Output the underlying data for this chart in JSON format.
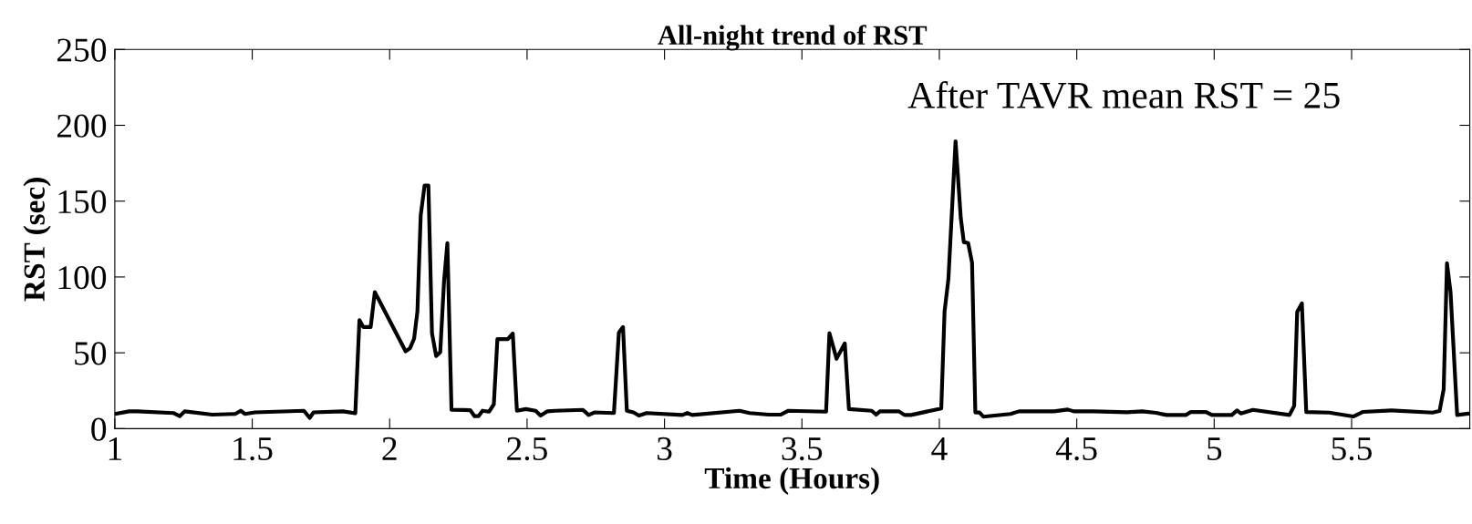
{
  "chart_data": {
    "type": "line",
    "title": "All-night trend of RST",
    "xlabel": "Time (Hours)",
    "ylabel": "RST (sec)",
    "annotations": [
      "After TAVR mean RST = 25"
    ],
    "xlim": [
      1,
      5.93
    ],
    "xticks": [
      1,
      1.5,
      2,
      2.5,
      3,
      3.5,
      4,
      4.5,
      5,
      5.5
    ],
    "ylim": [
      0,
      250
    ],
    "yticks": [
      0,
      50,
      100,
      150,
      200,
      250
    ],
    "grid": false,
    "marker": "none",
    "line_style": "solid",
    "x": [
      1.0,
      1.052,
      1.082,
      1.213,
      1.236,
      1.254,
      1.355,
      1.438,
      1.458,
      1.474,
      1.51,
      1.688,
      1.709,
      1.723,
      1.83,
      1.875,
      1.89,
      1.904,
      1.931,
      1.946,
      2.058,
      2.074,
      2.089,
      2.101,
      2.113,
      2.127,
      2.141,
      2.154,
      2.169,
      2.184,
      2.198,
      2.21,
      2.225,
      2.293,
      2.309,
      2.323,
      2.338,
      2.362,
      2.379,
      2.392,
      2.43,
      2.448,
      2.463,
      2.495,
      2.531,
      2.549,
      2.573,
      2.603,
      2.703,
      2.724,
      2.745,
      2.816,
      2.834,
      2.849,
      2.863,
      2.887,
      2.907,
      2.935,
      3.065,
      3.083,
      3.101,
      3.273,
      3.309,
      3.38,
      3.422,
      3.451,
      3.588,
      3.6,
      3.626,
      3.656,
      3.671,
      3.754,
      3.77,
      3.784,
      3.853,
      3.873,
      3.897,
      4.007,
      4.019,
      4.033,
      4.059,
      4.078,
      4.089,
      4.105,
      4.119,
      4.131,
      4.146,
      4.16,
      4.259,
      4.29,
      4.417,
      4.467,
      4.489,
      4.561,
      4.683,
      4.738,
      4.788,
      4.826,
      4.898,
      4.915,
      4.97,
      4.992,
      5.064,
      5.083,
      5.097,
      5.141,
      5.274,
      5.291,
      5.302,
      5.319,
      5.335,
      5.418,
      5.506,
      5.54,
      5.645,
      5.794,
      5.82,
      5.835,
      5.847,
      5.86,
      5.884,
      5.93
    ],
    "series": [
      {
        "color": "#000000",
        "values": [
          9.7,
          11.4,
          11.4,
          10.3,
          8.2,
          11.4,
          9.2,
          9.7,
          11.8,
          9.7,
          10.7,
          11.8,
          7.1,
          10.7,
          11.4,
          10.1,
          71.5,
          67,
          67,
          90,
          51,
          53,
          59.4,
          77.3,
          140.6,
          160.3,
          160.3,
          62.9,
          47.9,
          50.4,
          97.6,
          122.3,
          12.4,
          12.2,
          8.2,
          8.2,
          11.8,
          11.2,
          16.1,
          59,
          59,
          62.7,
          11.8,
          12.9,
          11.8,
          8.6,
          11.4,
          11.8,
          12.4,
          9,
          10.7,
          10.3,
          63.3,
          67,
          11.8,
          10.7,
          8.6,
          10.3,
          9,
          10.3,
          9,
          11.8,
          10.3,
          9.2,
          9.2,
          11.8,
          11.2,
          62.9,
          46.1,
          56.2,
          12.9,
          11.8,
          9.2,
          11.4,
          11.4,
          9,
          9,
          13.3,
          77.3,
          98.7,
          189.5,
          138.8,
          123,
          122.3,
          109.4,
          10.7,
          10.7,
          7.9,
          9.7,
          11.4,
          11.4,
          12.6,
          11.4,
          11.4,
          10.8,
          11.4,
          10.4,
          9,
          9,
          11,
          11,
          9,
          9,
          12,
          10,
          12.4,
          9,
          15,
          77,
          82.6,
          11,
          10.6,
          8,
          11,
          12,
          10.6,
          11.6,
          26,
          109,
          90,
          9,
          10
        ]
      }
    ]
  }
}
